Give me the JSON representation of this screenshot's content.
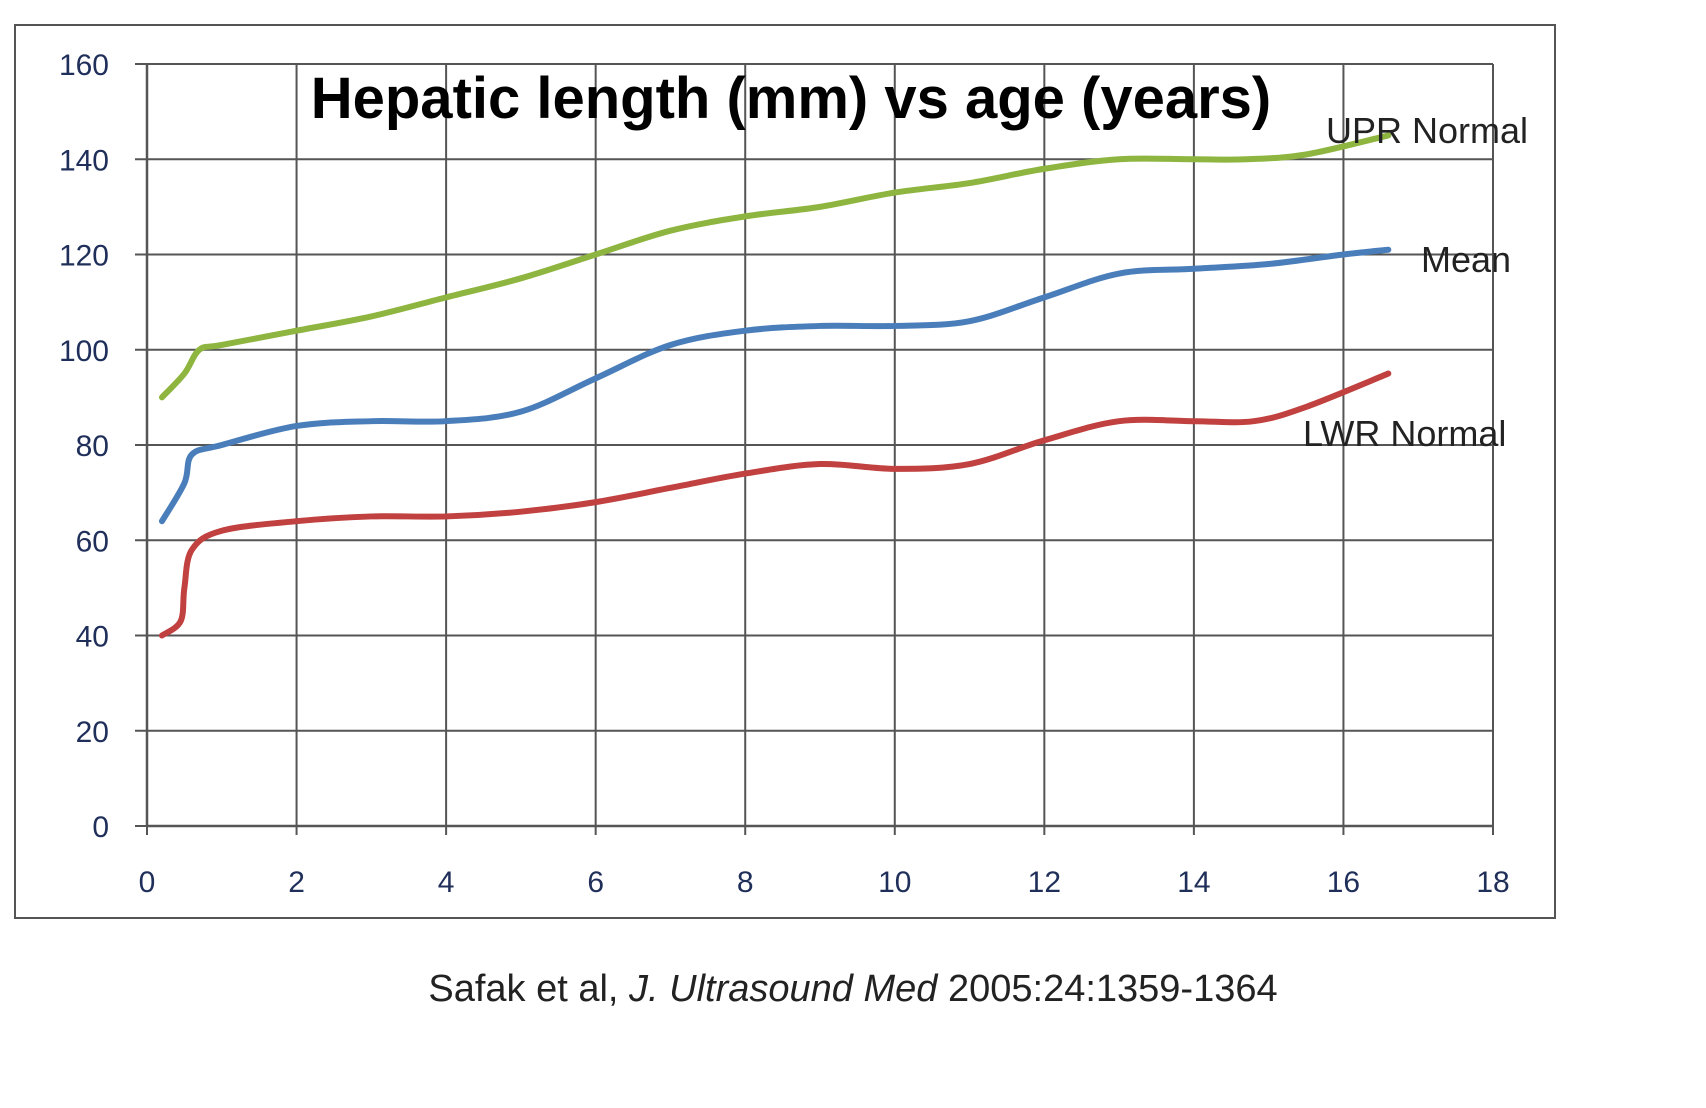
{
  "chart_data": {
    "type": "line",
    "title": "Hepatic length (mm) vs age (years)",
    "xlim": [
      0,
      18
    ],
    "ylim": [
      0,
      160
    ],
    "x_ticks": [
      "0",
      "2",
      "4",
      "6",
      "8",
      "10",
      "12",
      "14",
      "16",
      "18"
    ],
    "y_ticks": [
      "0",
      "20",
      "40",
      "60",
      "80",
      "100",
      "120",
      "140",
      "160"
    ],
    "grid": true,
    "series": [
      {
        "name": "UPR Normal",
        "color": "#8db53f",
        "points": [
          [
            0.2,
            90
          ],
          [
            0.5,
            95
          ],
          [
            0.7,
            100
          ],
          [
            1,
            101
          ],
          [
            2,
            104
          ],
          [
            3,
            107
          ],
          [
            4,
            111
          ],
          [
            5,
            115
          ],
          [
            6,
            120
          ],
          [
            7,
            125
          ],
          [
            8,
            128
          ],
          [
            9,
            130
          ],
          [
            10,
            133
          ],
          [
            11,
            135
          ],
          [
            12,
            138
          ],
          [
            13,
            140
          ],
          [
            14,
            140
          ],
          [
            14.7,
            140
          ],
          [
            15.5,
            141
          ],
          [
            16.6,
            145
          ]
        ]
      },
      {
        "name": "Mean",
        "color": "#4a7ebb",
        "points": [
          [
            0.2,
            64
          ],
          [
            0.5,
            72
          ],
          [
            0.6,
            78
          ],
          [
            1,
            80
          ],
          [
            2,
            84
          ],
          [
            3,
            85
          ],
          [
            4,
            85
          ],
          [
            5,
            87
          ],
          [
            6,
            94
          ],
          [
            7,
            101
          ],
          [
            8,
            104
          ],
          [
            9,
            105
          ],
          [
            10,
            105
          ],
          [
            11,
            106
          ],
          [
            12,
            111
          ],
          [
            13,
            116
          ],
          [
            14,
            117
          ],
          [
            15,
            118
          ],
          [
            16,
            120
          ],
          [
            16.6,
            121
          ]
        ]
      },
      {
        "name": "LWR Normal",
        "color": "#c0413f",
        "points": [
          [
            0.2,
            40
          ],
          [
            0.45,
            43
          ],
          [
            0.5,
            50
          ],
          [
            0.6,
            58
          ],
          [
            1,
            62
          ],
          [
            2,
            64
          ],
          [
            3,
            65
          ],
          [
            4,
            65
          ],
          [
            5,
            66
          ],
          [
            6,
            68
          ],
          [
            7,
            71
          ],
          [
            8,
            74
          ],
          [
            9,
            76
          ],
          [
            10,
            75
          ],
          [
            11,
            76
          ],
          [
            12,
            81
          ],
          [
            13,
            85
          ],
          [
            14,
            85
          ],
          [
            14.8,
            85
          ],
          [
            15.5,
            88
          ],
          [
            16.6,
            95
          ]
        ]
      }
    ]
  },
  "citation": {
    "authors": "Safak et al, ",
    "journal": "J. Ultrasound Med",
    "ref": " 2005:24:1359-1364"
  }
}
